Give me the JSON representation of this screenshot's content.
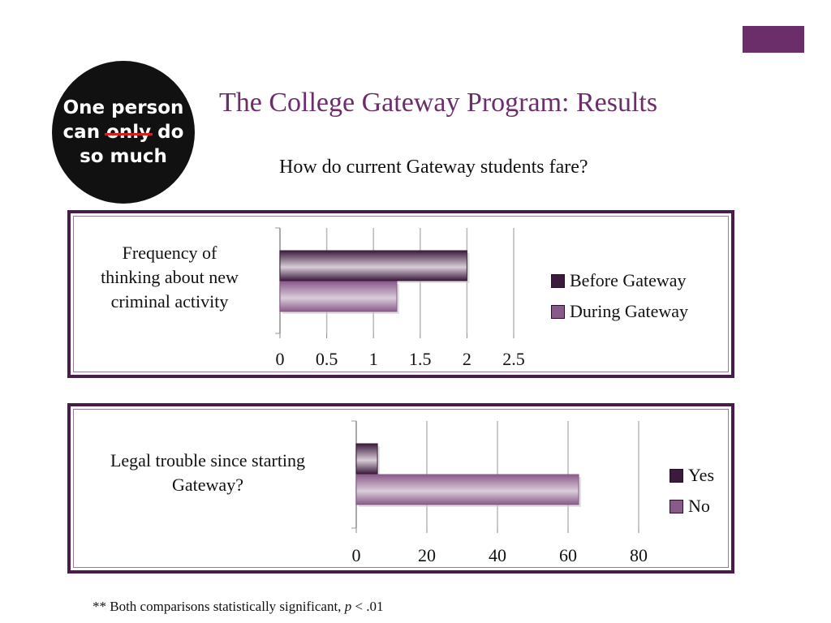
{
  "slide": {
    "title": "The College Gateway Program: Results",
    "subtitle": "How do current Gateway students fare?",
    "footnote_prefix": "** Both comparisons statistically significant, ",
    "footnote_p": "p",
    "footnote_suffix": " < .01",
    "accent_color": "#6b2e6a"
  },
  "logo": {
    "line1": "One person",
    "line2_a": "can ",
    "line2_strike": "only",
    "line2_b": " do",
    "line3": "so much"
  },
  "chart_data": [
    {
      "type": "bar",
      "orientation": "horizontal",
      "categories": [
        "Frequency of thinking about new criminal activity"
      ],
      "category_lines": [
        "Frequency of",
        "thinking about new",
        "criminal activity"
      ],
      "series": [
        {
          "name": "Before Gateway",
          "values": [
            2.0
          ],
          "color": "#3b1b3b"
        },
        {
          "name": "During Gateway",
          "values": [
            1.25
          ],
          "color": "#8a5a8a"
        }
      ],
      "xlim": [
        0,
        2.5
      ],
      "xticks": [
        "0",
        "0.5",
        "1",
        "1.5",
        "2",
        "2.5"
      ],
      "tick_values": [
        0,
        0.5,
        1,
        1.5,
        2,
        2.5
      ],
      "grid": true,
      "legend": "right"
    },
    {
      "type": "bar",
      "orientation": "horizontal",
      "categories": [
        "Legal trouble since starting Gateway?"
      ],
      "category_lines": [
        "Legal trouble since starting",
        "Gateway?"
      ],
      "series": [
        {
          "name": "Yes",
          "values": [
            6
          ],
          "color": "#3b1b3b"
        },
        {
          "name": "No",
          "values": [
            63
          ],
          "color": "#8a5a8a"
        }
      ],
      "xlim": [
        0,
        80
      ],
      "xticks": [
        "0",
        "20",
        "40",
        "60",
        "80"
      ],
      "tick_values": [
        0,
        20,
        40,
        60,
        80
      ],
      "grid": true,
      "legend": "right"
    }
  ]
}
